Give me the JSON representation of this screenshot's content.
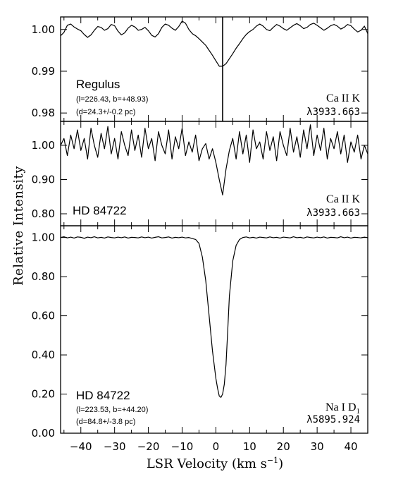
{
  "chart_data": {
    "type": "line",
    "ylabel": "Relative Intensity",
    "xlabel": "LSR Velocity (km s",
    "xlabel_sup": "−1",
    "xlabel_close": ")",
    "xlim": [
      -46,
      45
    ],
    "xticks": [
      -40,
      -30,
      -20,
      -10,
      0,
      10,
      20,
      30,
      40
    ],
    "xtick_labels": [
      "−40",
      "−30",
      "−20",
      "−10",
      "0",
      "10",
      "20",
      "30",
      "40"
    ],
    "panels": [
      {
        "star": "Regulus",
        "coords": "(l=226.43, b=+48.93)",
        "distance": "(d=24.3+/-0.2 pc)",
        "line": "Ca II K",
        "line_sub": "",
        "wavelength": "λ3933.663",
        "ylim": [
          0.978,
          1.003
        ],
        "yticks": [
          0.98,
          0.99,
          1.0
        ],
        "ytick_labels": [
          "0.98",
          "0.99",
          "1.00"
        ],
        "marker_velocity": 2.0,
        "x": [
          -46,
          -45,
          -44,
          -43,
          -42,
          -41,
          -40,
          -39,
          -38,
          -37,
          -36,
          -35,
          -34,
          -33,
          -32,
          -31,
          -30,
          -29,
          -28,
          -27,
          -26,
          -25,
          -24,
          -23,
          -22,
          -21,
          -20,
          -19,
          -18,
          -17,
          -16,
          -15,
          -14,
          -13,
          -12,
          -11,
          -10,
          -9,
          -8,
          -7,
          -6,
          -5,
          -4,
          -3,
          -2,
          -1,
          0,
          1,
          2,
          3,
          4,
          5,
          6,
          7,
          8,
          9,
          10,
          11,
          12,
          13,
          14,
          15,
          16,
          17,
          18,
          19,
          20,
          21,
          22,
          23,
          24,
          25,
          26,
          27,
          28,
          29,
          30,
          31,
          32,
          33,
          34,
          35,
          36,
          37,
          38,
          39,
          40,
          41,
          42,
          43,
          44,
          45
        ],
        "y": [
          0.9985,
          0.9993,
          1.001,
          1.0013,
          1.0006,
          1.0001,
          0.9997,
          0.9988,
          0.9981,
          0.9987,
          0.9998,
          1.0007,
          1.0005,
          0.9998,
          1.0002,
          1.0012,
          1.0009,
          0.9996,
          0.9987,
          0.9992,
          1.0003,
          1.001,
          1.0006,
          0.9998,
          1.0,
          1.0005,
          0.9997,
          0.9986,
          0.9982,
          0.999,
          1.0005,
          1.0013,
          1.001,
          1.0003,
          0.9998,
          1.0007,
          1.002,
          1.0015,
          1.0,
          0.999,
          0.9985,
          0.9978,
          0.997,
          0.9962,
          0.995,
          0.9938,
          0.9925,
          0.9912,
          0.9912,
          0.9918,
          0.993,
          0.9942,
          0.9955,
          0.9966,
          0.9978,
          0.9988,
          0.9995,
          1.0,
          1.0008,
          1.0013,
          1.0008,
          1.0,
          0.9997,
          1.0005,
          1.0012,
          1.0008,
          1.0002,
          0.9998,
          1.0004,
          1.001,
          1.0014,
          1.0009,
          1.0002,
          1.0005,
          1.0012,
          1.0015,
          1.001,
          1.0004,
          0.9998,
          1.0003,
          1.0009,
          1.0012,
          1.0008,
          1.0001,
          1.0005,
          1.0012,
          1.0009,
          1.0001,
          0.9994,
          0.9998,
          1.0008,
          0.999
        ]
      },
      {
        "star": "HD 84722",
        "coords": "",
        "distance": "",
        "line": "Ca II K",
        "line_sub": "",
        "wavelength": "λ3933.663",
        "ylim": [
          0.765,
          1.07
        ],
        "yticks": [
          0.8,
          0.9,
          1.0
        ],
        "ytick_labels": [
          "0.80",
          "0.90",
          "1.00"
        ],
        "marker_velocity": null,
        "x": [
          -46,
          -45,
          -44,
          -43,
          -42,
          -41,
          -40,
          -39,
          -38,
          -37,
          -36,
          -35,
          -34,
          -33,
          -32,
          -31,
          -30,
          -29,
          -28,
          -27,
          -26,
          -25,
          -24,
          -23,
          -22,
          -21,
          -20,
          -19,
          -18,
          -17,
          -16,
          -15,
          -14,
          -13,
          -12,
          -11,
          -10,
          -9,
          -8,
          -7,
          -6,
          -5,
          -4,
          -3,
          -2,
          -1,
          0,
          1,
          2,
          3,
          4,
          5,
          6,
          7,
          8,
          9,
          10,
          11,
          12,
          13,
          14,
          15,
          16,
          17,
          18,
          19,
          20,
          21,
          22,
          23,
          24,
          25,
          26,
          27,
          28,
          29,
          30,
          31,
          32,
          33,
          34,
          35,
          36,
          37,
          38,
          39,
          40,
          41,
          42,
          43,
          44,
          45
        ],
        "y": [
          1.0,
          1.02,
          0.97,
          1.03,
          0.99,
          1.045,
          0.985,
          1.02,
          0.96,
          1.05,
          1.0,
          0.965,
          1.035,
          0.99,
          1.055,
          0.975,
          1.02,
          0.96,
          1.04,
          1.0,
          0.97,
          1.045,
          0.985,
          1.03,
          0.965,
          1.05,
          0.99,
          1.02,
          0.955,
          1.04,
          1.0,
          0.975,
          1.045,
          0.96,
          1.025,
          0.99,
          1.05,
          0.97,
          1.01,
          0.98,
          1.03,
          0.955,
          0.99,
          1.005,
          0.96,
          0.99,
          0.95,
          0.9,
          0.855,
          0.93,
          0.985,
          1.02,
          0.96,
          1.04,
          0.975,
          1.03,
          0.95,
          1.045,
          0.99,
          1.01,
          0.96,
          1.04,
          0.985,
          1.025,
          0.955,
          1.04,
          1.0,
          0.97,
          1.05,
          0.98,
          1.025,
          0.965,
          1.045,
          0.99,
          1.06,
          0.97,
          1.03,
          0.985,
          1.05,
          0.96,
          1.02,
          0.99,
          1.04,
          0.975,
          1.03,
          0.95,
          1.01,
          0.98,
          1.03,
          0.96,
          1.0,
          0.975
        ]
      },
      {
        "star": "HD 84722",
        "coords": "(l=223.53, b=+44.20)",
        "distance": "(d=84.8+/-3.8 pc)",
        "line": "Na I D",
        "line_sub": "1",
        "wavelength": "λ5895.924",
        "ylim": [
          0.0,
          1.06
        ],
        "yticks": [
          0.0,
          0.2,
          0.4,
          0.6,
          0.8,
          1.0
        ],
        "ytick_labels": [
          "0.00",
          "0.20",
          "0.40",
          "0.60",
          "0.80",
          "1.00"
        ],
        "marker_velocity": null,
        "x": [
          -46,
          -45,
          -44,
          -43,
          -42,
          -41,
          -40,
          -39,
          -38,
          -37,
          -36,
          -35,
          -34,
          -33,
          -32,
          -31,
          -30,
          -29,
          -28,
          -27,
          -26,
          -25,
          -24,
          -23,
          -22,
          -21,
          -20,
          -19,
          -18,
          -17,
          -16,
          -15,
          -14,
          -13,
          -12,
          -11,
          -10,
          -9,
          -8,
          -7,
          -6,
          -5,
          -4,
          -3,
          -2,
          -1,
          0,
          0.5,
          1,
          1.5,
          2,
          2.5,
          3,
          3.5,
          4,
          5,
          6,
          7,
          8,
          9,
          10,
          11,
          12,
          13,
          14,
          15,
          16,
          17,
          18,
          19,
          20,
          21,
          22,
          23,
          24,
          25,
          26,
          27,
          28,
          29,
          30,
          31,
          32,
          33,
          34,
          35,
          36,
          37,
          38,
          39,
          40,
          41,
          42,
          43,
          44,
          45
        ],
        "y": [
          1.0,
          1.004,
          0.998,
          1.002,
          0.997,
          1.003,
          1.001,
          0.996,
          1.002,
          0.999,
          1.004,
          0.998,
          1.001,
          0.997,
          1.003,
          1.0,
          0.998,
          1.002,
          0.999,
          1.003,
          0.997,
          1.001,
          1.0,
          0.998,
          1.003,
          0.999,
          1.002,
          0.997,
          1.001,
          1.004,
          0.998,
          1.0,
          1.003,
          0.997,
          1.001,
          0.999,
          1.002,
          0.998,
          1.0,
          0.995,
          0.99,
          0.97,
          0.9,
          0.78,
          0.6,
          0.42,
          0.28,
          0.23,
          0.19,
          0.183,
          0.2,
          0.25,
          0.35,
          0.52,
          0.7,
          0.88,
          0.96,
          0.99,
          1.0,
          1.003,
          0.998,
          1.001,
          0.997,
          1.002,
          1.0,
          0.998,
          1.003,
          0.999,
          1.001,
          0.997,
          1.002,
          1.0,
          0.998,
          1.004,
          0.999,
          1.001,
          0.997,
          1.003,
          1.0,
          0.998,
          1.002,
          0.999,
          1.003,
          0.997,
          1.001,
          1.0,
          0.998,
          1.004,
          0.999,
          1.002,
          0.997,
          1.001,
          1.0,
          0.998,
          1.002,
          0.999
        ]
      }
    ]
  }
}
